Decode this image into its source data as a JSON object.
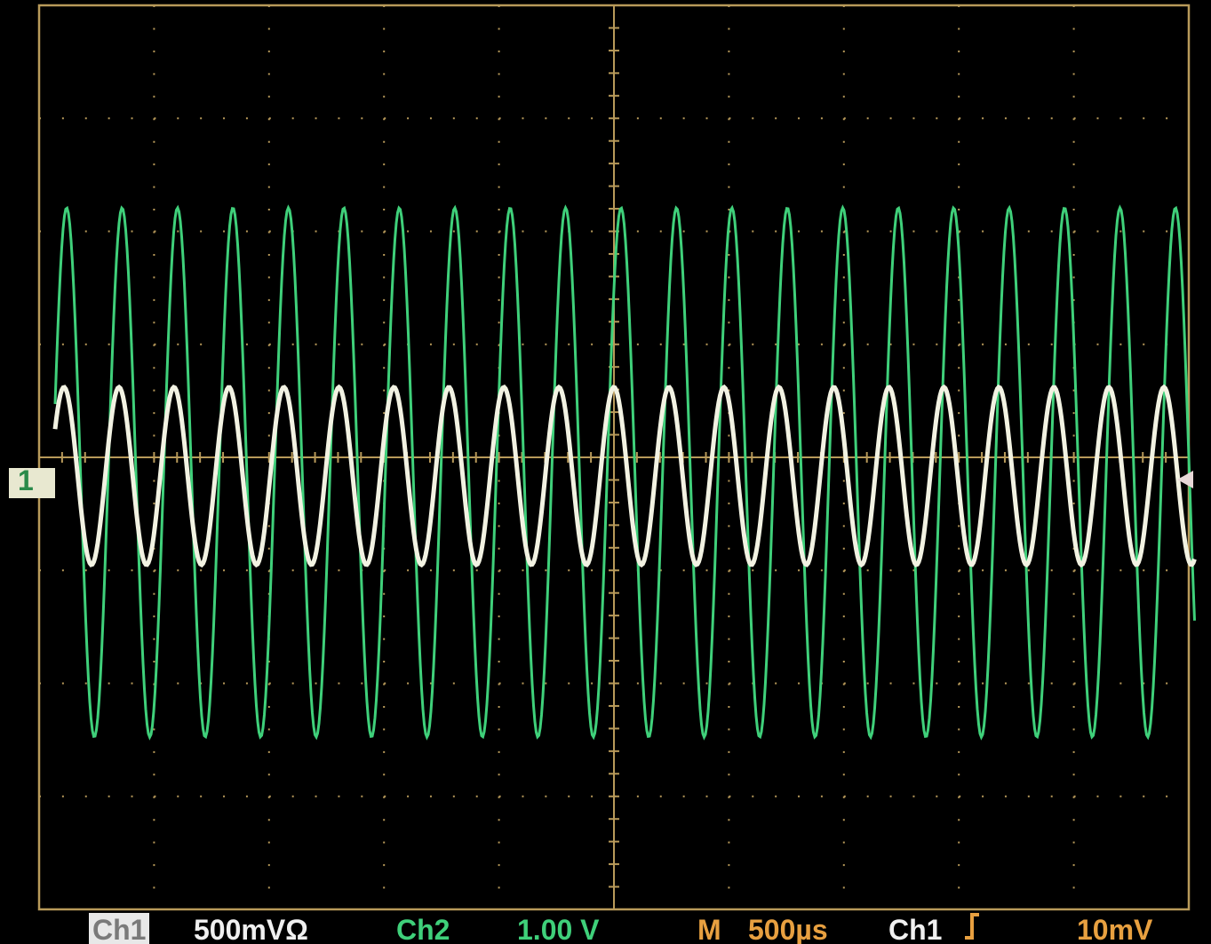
{
  "markers": {
    "ch1_ground": "1"
  },
  "status_bar": {
    "ch1_label": "Ch1",
    "ch1_scale": "500mVΩ",
    "ch2_label": "Ch2",
    "ch2_scale": "1.00 V",
    "timebase_label": "M",
    "timebase": "500µs",
    "trigger_source": "Ch1",
    "trigger_level": "10mV"
  }
}
